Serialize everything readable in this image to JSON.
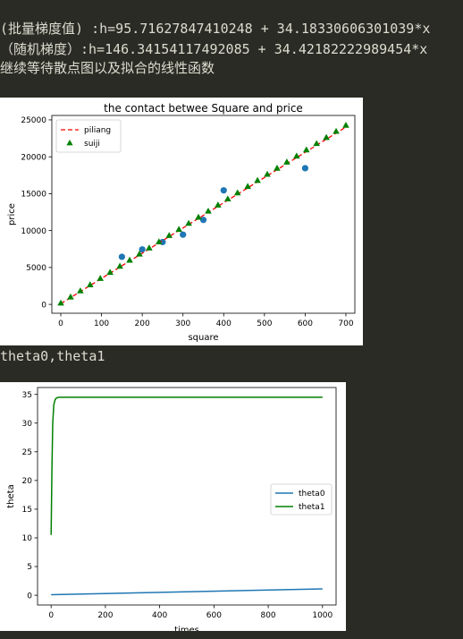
{
  "output": {
    "line1": "(批量梯度值) :h=95.71627847410248 + 34.18330606301039*x",
    "line2": "（随机梯度）:h=146.34154117492085 + 34.42182222989454*x",
    "line3": "继续等待散点图以及拟合的线性函数",
    "line4": "theta0,theta1"
  },
  "chart_data": [
    {
      "type": "scatter",
      "title": "the contact betwee Square and price",
      "xlabel": "square",
      "ylabel": "price",
      "xlim": [
        -22,
        722
      ],
      "ylim": [
        -1200,
        25600
      ],
      "xticks": [
        0,
        100,
        200,
        300,
        400,
        500,
        600,
        700
      ],
      "yticks": [
        0,
        5000,
        10000,
        15000,
        20000,
        25000
      ],
      "legend": {
        "placement": "top-left",
        "entries": [
          "piliang",
          "suiji"
        ]
      },
      "colors": {
        "points": "#1f77b4",
        "piliang": "#ff0000",
        "suiji": "#008000"
      },
      "points": [
        {
          "x": 150,
          "y": 6450
        },
        {
          "x": 200,
          "y": 7450
        },
        {
          "x": 250,
          "y": 8450
        },
        {
          "x": 300,
          "y": 9450
        },
        {
          "x": 350,
          "y": 11450
        },
        {
          "x": 400,
          "y": 15450
        },
        {
          "x": 600,
          "y": 18450
        }
      ],
      "series": [
        {
          "name": "piliang",
          "style": "dashed",
          "intercept": 95.71627847410248,
          "slope": 34.18330606301039,
          "x": [
            0,
            700
          ]
        },
        {
          "name": "suiji",
          "style": "triangles",
          "intercept": 146.34154117492085,
          "slope": 34.42182222989454,
          "x": [
            0,
            24,
            48,
            72,
            97,
            121,
            145,
            169,
            193,
            217,
            241,
            266,
            290,
            314,
            338,
            362,
            386,
            410,
            434,
            459,
            483,
            507,
            531,
            555,
            579,
            603,
            628,
            652,
            676,
            700
          ]
        }
      ]
    },
    {
      "type": "line",
      "xlabel": "times",
      "ylabel": "theta",
      "xlim": [
        -50,
        1050
      ],
      "ylim": [
        -1.7,
        36.2
      ],
      "xticks": [
        0,
        200,
        400,
        600,
        800,
        1000
      ],
      "yticks": [
        0,
        5,
        10,
        15,
        20,
        25,
        30,
        35
      ],
      "legend": {
        "placement": "center-right",
        "entries": [
          "theta0",
          "theta1"
        ]
      },
      "colors": {
        "theta0": "#1f77b4",
        "theta1": "#008000"
      },
      "series": [
        {
          "name": "theta0",
          "x": [
            0,
            1000
          ],
          "y": [
            0.1,
            1.1
          ]
        },
        {
          "name": "theta1",
          "x": [
            0,
            3,
            6,
            10,
            15,
            20,
            30,
            60,
            1000
          ],
          "y": [
            10.5,
            22,
            30,
            33.2,
            34.1,
            34.4,
            34.5,
            34.5,
            34.5
          ]
        }
      ]
    }
  ]
}
